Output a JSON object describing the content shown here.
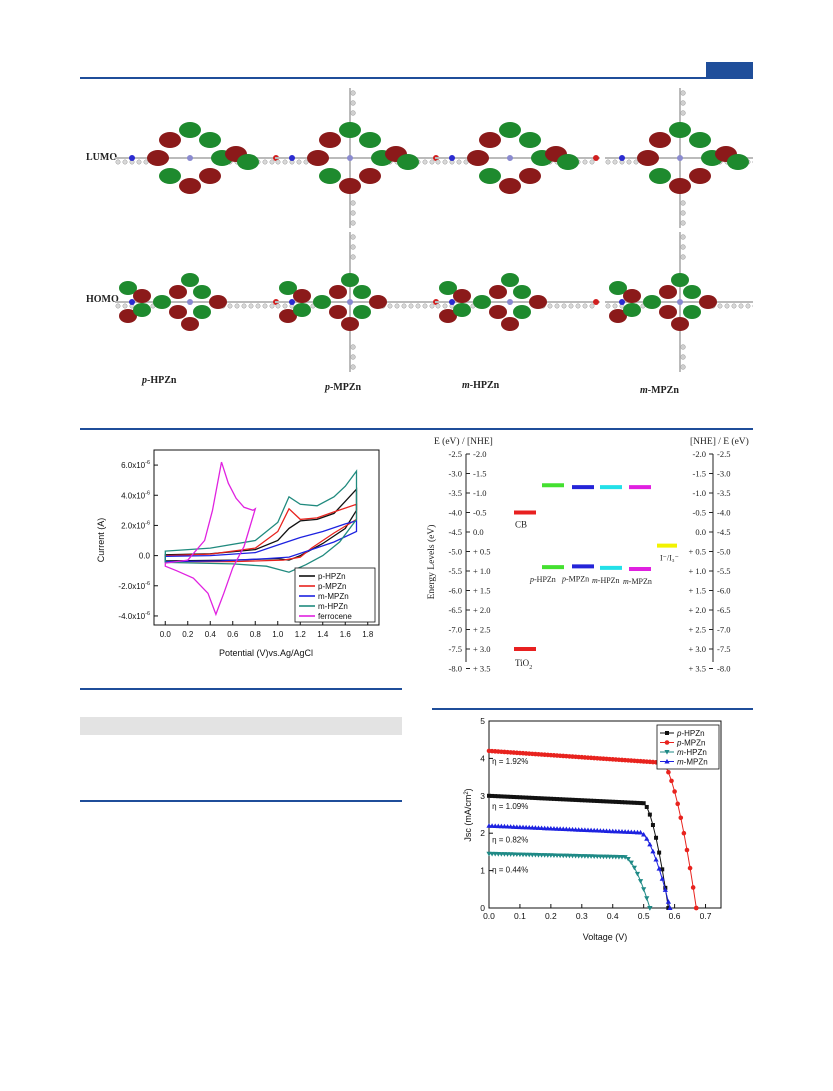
{
  "orbitals": {
    "row_labels": [
      "LUMO",
      "HOMO"
    ],
    "molecules": [
      "p-HPZn",
      "p-MPZn",
      "m-HPZn",
      "m-MPZn"
    ]
  },
  "colors": {
    "accent": "#1f4e9a",
    "orbital_red": "#8b1a1a",
    "orbital_green": "#1e8a2e"
  },
  "chart_data": [
    {
      "type": "line",
      "xlabel": "Potential (V)vs.Ag/AgCl",
      "ylabel": "Current (A)",
      "xlim": [
        -0.1,
        1.9
      ],
      "ylim": [
        -4.6e-06,
        7e-06
      ],
      "xticks": [
        "0.0",
        "0.2",
        "0.4",
        "0.6",
        "0.8",
        "1.0",
        "1.2",
        "1.4",
        "1.6",
        "1.8"
      ],
      "yticks": [
        {
          "v": 6e-06,
          "base": "6.0x10",
          "exp": "-6"
        },
        {
          "v": 4e-06,
          "base": "4.0x10",
          "exp": "-6"
        },
        {
          "v": 2e-06,
          "base": "2.0x10",
          "exp": "-6"
        },
        {
          "v": 0,
          "base": "0.0",
          "exp": ""
        },
        {
          "v": -2e-06,
          "base": "-2.0x10",
          "exp": "-6"
        },
        {
          "v": -4e-06,
          "base": "-4.0x10",
          "exp": "-6"
        }
      ],
      "legend_position": "bottom-right",
      "series": [
        {
          "name": "p-HPZn",
          "color": "#111111",
          "points": [
            [
              0.0,
              5e-08
            ],
            [
              0.4,
              1.2e-07
            ],
            [
              0.8,
              4e-07
            ],
            [
              1.0,
              1e-06
            ],
            [
              1.1,
              1.8e-06
            ],
            [
              1.2,
              2.3e-06
            ],
            [
              1.35,
              2.4e-06
            ],
            [
              1.5,
              2.8e-06
            ],
            [
              1.6,
              3.6e-06
            ],
            [
              1.7,
              4.4e-06
            ],
            [
              1.7,
              3e-06
            ],
            [
              1.6,
              1.8e-06
            ],
            [
              1.4,
              8e-07
            ],
            [
              1.2,
              0.0
            ],
            [
              1.1,
              -3e-07
            ],
            [
              1.0,
              -2e-07
            ],
            [
              0.6,
              -3e-07
            ],
            [
              0.0,
              -3.5e-07
            ]
          ]
        },
        {
          "name": "p-MPZn",
          "color": "#e8231e",
          "points": [
            [
              0.0,
              0.0
            ],
            [
              0.4,
              1e-07
            ],
            [
              0.8,
              5e-07
            ],
            [
              1.0,
              1.6e-06
            ],
            [
              1.1,
              3.1e-06
            ],
            [
              1.2,
              2.4e-06
            ],
            [
              1.35,
              2.5e-06
            ],
            [
              1.5,
              2.9e-06
            ],
            [
              1.7,
              3.4e-06
            ],
            [
              1.7,
              2.4e-06
            ],
            [
              1.5,
              1.5e-06
            ],
            [
              1.3,
              5e-07
            ],
            [
              1.2,
              -1e-07
            ],
            [
              1.05,
              -3e-07
            ],
            [
              0.6,
              -4e-07
            ],
            [
              0.0,
              -4e-07
            ]
          ]
        },
        {
          "name": "m-MPZn",
          "color": "#1d22e0",
          "points": [
            [
              0.0,
              -5e-08
            ],
            [
              0.4,
              0.0
            ],
            [
              0.8,
              2e-07
            ],
            [
              1.0,
              7e-07
            ],
            [
              1.2,
              1.2e-06
            ],
            [
              1.4,
              1.6e-06
            ],
            [
              1.6,
              2.1e-06
            ],
            [
              1.7,
              2.3e-06
            ],
            [
              1.7,
              1.6e-06
            ],
            [
              1.5,
              9e-07
            ],
            [
              1.3,
              4e-07
            ],
            [
              1.1,
              -1e-07
            ],
            [
              0.9,
              -2e-07
            ],
            [
              0.5,
              -3.5e-07
            ],
            [
              0.0,
              -4e-07
            ]
          ]
        },
        {
          "name": "m-HPZn",
          "color": "#208a7e",
          "points": [
            [
              0.0,
              3e-07
            ],
            [
              0.4,
              5e-07
            ],
            [
              0.8,
              1e-06
            ],
            [
              1.0,
              2.2e-06
            ],
            [
              1.1,
              3.9e-06
            ],
            [
              1.2,
              3.4e-06
            ],
            [
              1.35,
              3.3e-06
            ],
            [
              1.5,
              3.9e-06
            ],
            [
              1.6,
              4.6e-06
            ],
            [
              1.7,
              5.6e-06
            ],
            [
              1.7,
              2.4e-06
            ],
            [
              1.55,
              9e-07
            ],
            [
              1.4,
              0.0
            ],
            [
              1.25,
              -6e-07
            ],
            [
              1.1,
              -1.1e-06
            ],
            [
              0.9,
              -7e-07
            ],
            [
              0.6,
              -5.5e-07
            ],
            [
              0.0,
              -4.5e-07
            ]
          ]
        },
        {
          "name": "ferrocene",
          "color": "#e022e0",
          "points": [
            [
              0.0,
              -5e-07
            ],
            [
              0.2,
              -3e-07
            ],
            [
              0.35,
              1e-06
            ],
            [
              0.42,
              3e-06
            ],
            [
              0.5,
              6.2e-06
            ],
            [
              0.56,
              4.8e-06
            ],
            [
              0.63,
              3.8e-06
            ],
            [
              0.7,
              3.2e-06
            ],
            [
              0.78,
              3e-06
            ],
            [
              0.8,
              3.1e-06
            ],
            [
              0.7,
              6e-07
            ],
            [
              0.6,
              -8e-07
            ],
            [
              0.52,
              -2.5e-06
            ],
            [
              0.47,
              -3.5e-06
            ],
            [
              0.45,
              -3.9e-06
            ],
            [
              0.38,
              -2.5e-06
            ],
            [
              0.25,
              -1.5e-06
            ],
            [
              0.1,
              -1e-06
            ],
            [
              0.0,
              -7e-07
            ]
          ]
        }
      ]
    },
    {
      "type": "diagram",
      "left_header": "E (eV) / [NHE]",
      "right_header": "[NHE] / E (eV)",
      "ylabel": "Energy Levels (eV)",
      "e_ticks": [
        "-2.5",
        "-3.0",
        "-3.5",
        "-4.0",
        "-4.5",
        "-5.0",
        "-5.5",
        "-6.0",
        "-6.5",
        "-7.0",
        "-7.5",
        "-8.0"
      ],
      "nhe_ticks": [
        "-2.0",
        "-1.5",
        "-1.0",
        "-0.5",
        "0.0",
        "+ 0.5",
        "+ 1.0",
        "+ 1.5",
        "+ 2.0",
        "+ 2.5",
        "+ 3.0",
        "+ 3.5"
      ],
      "tio2": {
        "label": "TiO",
        "sub": "2",
        "cb_label": "CB",
        "cb": -4.0,
        "vb": -7.5,
        "color": "#e82020"
      },
      "redox": {
        "label": "I⁻/I₃⁻",
        "level": -4.85,
        "color": "#f2f200"
      },
      "dyes": [
        {
          "name": "p-HPZn",
          "italic": "p",
          "rest": "-HPZn",
          "lumo": -3.3,
          "homo": -5.4,
          "color": "#44e030"
        },
        {
          "name": "p-MPZn",
          "italic": "p",
          "rest": "-MPZn",
          "lumo": -3.35,
          "homo": -5.38,
          "color": "#2424d8"
        },
        {
          "name": "m-HPZn",
          "italic": "m",
          "rest": "-HPZn",
          "lumo": -3.35,
          "homo": -5.42,
          "color": "#22e0e8"
        },
        {
          "name": "m-MPZn",
          "italic": "m",
          "rest": "-MPZn",
          "lumo": -3.35,
          "homo": -5.45,
          "color": "#e020e0"
        }
      ]
    },
    {
      "type": "scatter",
      "xlabel": "Voltage (V)",
      "ylabel_base": "Jsc (mA/cm",
      "ylabel_sup": "2",
      "ylabel_end": ")",
      "xlim": [
        0.0,
        0.75
      ],
      "ylim": [
        0,
        5
      ],
      "xticks": [
        "0.0",
        "0.1",
        "0.2",
        "0.3",
        "0.4",
        "0.5",
        "0.6",
        "0.7"
      ],
      "yticks": [
        "0",
        "1",
        "2",
        "3",
        "4",
        "5"
      ],
      "legend_position": "top-right",
      "annotations": [
        {
          "text": "η = 1.92%",
          "x": 0.01,
          "y": 3.85
        },
        {
          "text": "η = 1.09%",
          "x": 0.01,
          "y": 2.65
        },
        {
          "text": "η = 0.82%",
          "x": 0.01,
          "y": 1.75
        },
        {
          "text": "η = 0.44%",
          "x": 0.01,
          "y": 0.95
        }
      ],
      "series": [
        {
          "name": "p-HPZn",
          "italic": "p",
          "rest": "-HPZn",
          "color": "#111111",
          "marker": "square",
          "jsc": 3.0,
          "voc": 0.58,
          "slope": 0.22,
          "knee": 0.5
        },
        {
          "name": "p-MPZn",
          "italic": "p",
          "rest": "-MPZn",
          "color": "#e8231e",
          "marker": "circle",
          "jsc": 4.2,
          "voc": 0.67,
          "slope": 0.35,
          "knee": 0.56
        },
        {
          "name": "m-HPZn",
          "italic": "m",
          "rest": "-HPZn",
          "color": "#1f8a86",
          "marker": "tri-down",
          "jsc": 1.45,
          "voc": 0.52,
          "slope": 0.1,
          "knee": 0.44
        },
        {
          "name": "m-MPZn",
          "italic": "m",
          "rest": "-MPZn",
          "color": "#1d22e0",
          "marker": "tri-up",
          "jsc": 2.2,
          "voc": 0.585,
          "slope": 0.2,
          "knee": 0.49
        }
      ]
    }
  ]
}
